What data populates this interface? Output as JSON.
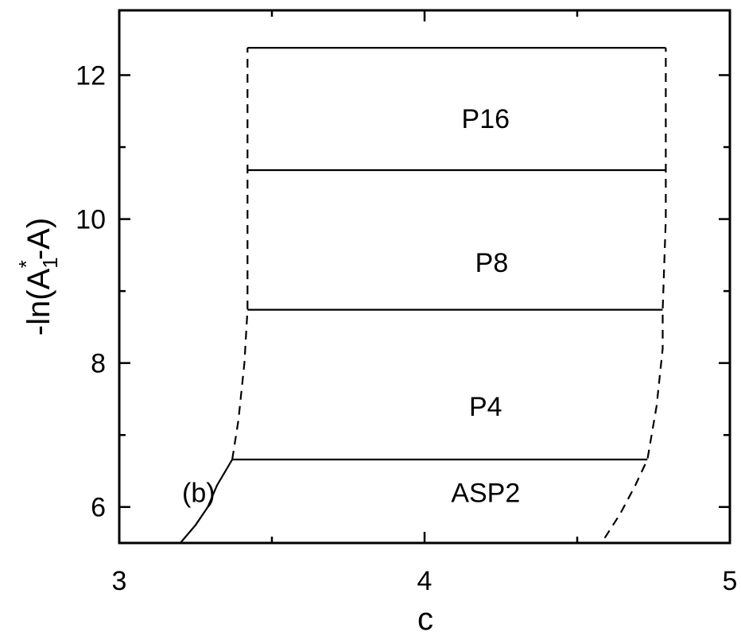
{
  "chart_data": {
    "type": "line",
    "xlabel": "c",
    "ylabel": {
      "prefix": "-ln(A",
      "subscript": "1",
      "superscript": "*",
      "suffix": "-A)"
    },
    "xlim": [
      3.0,
      5.0
    ],
    "ylim": [
      5.5,
      12.9
    ],
    "x_ticks": [
      {
        "value": 3,
        "label": "3"
      },
      {
        "value": 4,
        "label": "4"
      },
      {
        "value": 5,
        "label": "5"
      }
    ],
    "x_minor_ticks": [
      3.5,
      4.5
    ],
    "y_ticks": [
      {
        "value": 6,
        "label": "6"
      },
      {
        "value": 8,
        "label": "8"
      },
      {
        "value": 10,
        "label": "10"
      },
      {
        "value": 12,
        "label": "12"
      }
    ],
    "y_minor_ticks": [
      7,
      9,
      11
    ],
    "panel_label": {
      "text": "(b)",
      "x": 3.26,
      "y": 6.2
    },
    "region_labels": [
      {
        "text": "P16",
        "x": 4.2,
        "y": 11.4
      },
      {
        "text": "P8",
        "x": 4.22,
        "y": 9.4
      },
      {
        "text": "P4",
        "x": 4.2,
        "y": 7.4
      },
      {
        "text": "ASP2",
        "x": 4.2,
        "y": 6.2
      }
    ],
    "series": [
      {
        "style": "solid",
        "points": [
          [
            3.42,
            12.38
          ],
          [
            4.79,
            12.38
          ]
        ]
      },
      {
        "style": "solid",
        "points": [
          [
            3.42,
            10.68
          ],
          [
            4.79,
            10.68
          ]
        ]
      },
      {
        "style": "solid",
        "points": [
          [
            3.42,
            8.74
          ],
          [
            4.78,
            8.74
          ]
        ]
      },
      {
        "style": "solid",
        "points": [
          [
            3.37,
            6.66
          ],
          [
            4.73,
            6.66
          ]
        ]
      },
      {
        "style": "solid",
        "points": [
          [
            3.2,
            5.5
          ],
          [
            3.25,
            5.75
          ],
          [
            3.29,
            6.0
          ],
          [
            3.32,
            6.3
          ],
          [
            3.37,
            6.66
          ]
        ]
      },
      {
        "style": "dashed",
        "points": [
          [
            3.37,
            6.66
          ],
          [
            3.39,
            7.2
          ],
          [
            3.41,
            8.0
          ],
          [
            3.42,
            8.74
          ],
          [
            3.42,
            10.0
          ],
          [
            3.42,
            11.5
          ],
          [
            3.42,
            12.38
          ]
        ]
      },
      {
        "style": "dashed",
        "points": [
          [
            4.59,
            5.57
          ],
          [
            4.64,
            5.9
          ],
          [
            4.69,
            6.3
          ],
          [
            4.73,
            6.66
          ],
          [
            4.76,
            7.4
          ],
          [
            4.78,
            8.2
          ],
          [
            4.78,
            8.74
          ],
          [
            4.79,
            10.0
          ],
          [
            4.79,
            11.5
          ],
          [
            4.79,
            12.38
          ]
        ]
      }
    ]
  }
}
